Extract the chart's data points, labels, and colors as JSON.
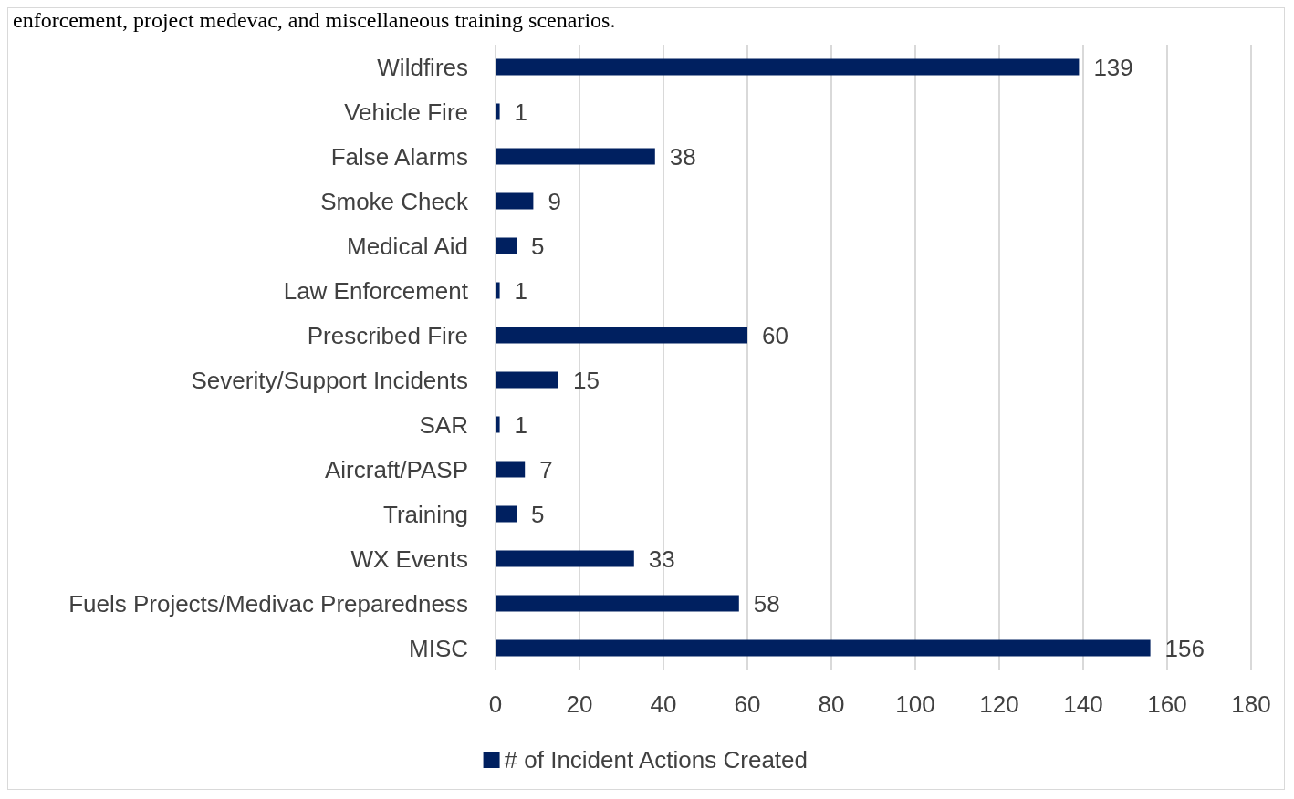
{
  "chart_data": {
    "type": "bar",
    "orientation": "horizontal",
    "categories": [
      "Wildfires",
      "Vehicle Fire",
      "False Alarms",
      "Smoke Check",
      "Medical Aid",
      "Law Enforcement",
      "Prescribed Fire",
      "Severity/Support Incidents",
      "SAR",
      "Aircraft/PASP",
      "Training",
      "WX Events",
      "Fuels Projects/Medivac Preparedness",
      "MISC"
    ],
    "series": [
      {
        "name": "# of Incident Actions Created",
        "color": "#002060",
        "values": [
          139,
          1,
          38,
          9,
          5,
          1,
          60,
          15,
          1,
          7,
          5,
          33,
          58,
          156
        ]
      }
    ],
    "xlim": [
      0,
      180
    ],
    "xticks": [
      0,
      20,
      40,
      60,
      80,
      100,
      120,
      140,
      160,
      180
    ],
    "grid": "x",
    "legend": "bottom",
    "data_labels": true,
    "annotations": [
      "enforcement, project medevac, and miscellaneous training scenarios."
    ]
  }
}
